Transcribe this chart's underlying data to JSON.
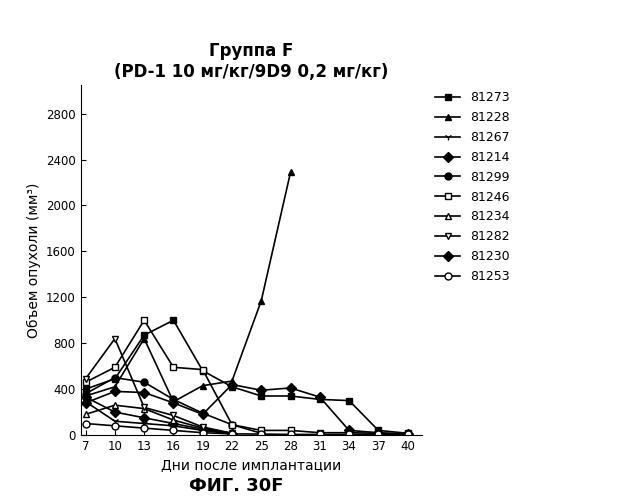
{
  "title_line1": "Группа F",
  "title_line2": "(PD-1 10 мг/кг/9D9 0,2 мг/кг)",
  "xlabel": "Дни после имплантации",
  "ylabel": "Объем опухоли (мм³)",
  "caption": "ФИГ. 30F",
  "xticks": [
    7,
    10,
    13,
    16,
    19,
    22,
    25,
    28,
    31,
    34,
    37,
    40
  ],
  "yticks": [
    0,
    400,
    800,
    1200,
    1600,
    2000,
    2400,
    2800
  ],
  "ylim": [
    0,
    3050
  ],
  "xlim": [
    6.5,
    41.5
  ],
  "series": [
    {
      "label": "81273",
      "marker": "s",
      "fillstyle": "full",
      "x": [
        7,
        10,
        13,
        16,
        19,
        22,
        25,
        28,
        31,
        34,
        37,
        40
      ],
      "y": [
        400,
        490,
        870,
        1000,
        560,
        420,
        340,
        340,
        310,
        300,
        40,
        15
      ]
    },
    {
      "label": "81228",
      "marker": "^",
      "fillstyle": "full",
      "x": [
        7,
        10,
        13,
        16,
        19,
        22,
        25,
        28
      ],
      "y": [
        340,
        420,
        840,
        290,
        430,
        470,
        1170,
        2290
      ]
    },
    {
      "label": "81267",
      "marker": "1",
      "fillstyle": "full",
      "x": [
        7,
        10,
        13,
        16,
        19,
        22
      ],
      "y": [
        290,
        120,
        100,
        80,
        40,
        10
      ]
    },
    {
      "label": "81214",
      "marker": "D",
      "fillstyle": "full",
      "x": [
        7,
        10,
        13,
        16,
        19,
        22
      ],
      "y": [
        330,
        200,
        150,
        100,
        50,
        10
      ]
    },
    {
      "label": "81299",
      "marker": "o",
      "fillstyle": "full",
      "x": [
        7,
        10,
        13,
        16,
        19,
        22,
        25
      ],
      "y": [
        360,
        500,
        460,
        310,
        190,
        90,
        15
      ]
    },
    {
      "label": "81246",
      "marker": "s",
      "fillstyle": "none",
      "x": [
        7,
        10,
        13,
        16,
        19,
        22,
        25,
        28,
        31,
        34,
        37,
        40
      ],
      "y": [
        460,
        590,
        1000,
        590,
        570,
        90,
        40,
        40,
        20,
        20,
        15,
        8
      ]
    },
    {
      "label": "81234",
      "marker": "^",
      "fillstyle": "none",
      "x": [
        7,
        10,
        13,
        16,
        19,
        22
      ],
      "y": [
        180,
        260,
        230,
        130,
        60,
        15
      ]
    },
    {
      "label": "81282",
      "marker": "v",
      "fillstyle": "none",
      "x": [
        7,
        10,
        13,
        16,
        19,
        22
      ],
      "y": [
        490,
        840,
        240,
        170,
        70,
        15
      ]
    },
    {
      "label": "81230",
      "marker": "D",
      "fillstyle": "full",
      "x": [
        7,
        10,
        13,
        16,
        19,
        22,
        25,
        28,
        31,
        34,
        37,
        40
      ],
      "y": [
        280,
        380,
        370,
        280,
        180,
        440,
        390,
        410,
        330,
        40,
        20,
        8
      ]
    },
    {
      "label": "81253",
      "marker": "o",
      "fillstyle": "none",
      "x": [
        7,
        10,
        13,
        16,
        19,
        22,
        25,
        28,
        31,
        34,
        37,
        40
      ],
      "y": [
        100,
        80,
        60,
        40,
        20,
        10,
        8,
        5,
        5,
        5,
        5,
        5
      ]
    }
  ]
}
